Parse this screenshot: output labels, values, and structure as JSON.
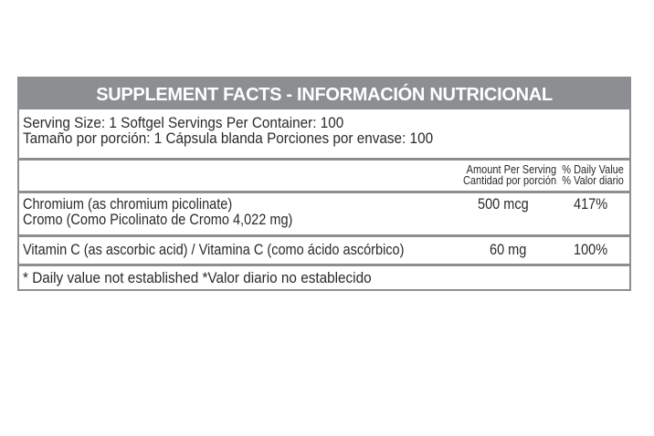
{
  "title": "SUPPLEMENT FACTS - INFORMACIÓN NUTRICIONAL",
  "serving": {
    "line_en": "Serving Size: 1 Softgel Servings Per Container: 100",
    "line_es": "Tamaño por porción: 1 Cápsula blanda Porciones por envase: 100"
  },
  "columns": {
    "amount_en": "Amount Per Serving",
    "dv_en": "% Daily Value",
    "amount_es": "Cantidad por porción",
    "dv_es": "% Valor diario"
  },
  "nutrients": [
    {
      "name_en": "Chromium (as chromium picolinate)",
      "name_es": "Cromo (Como Picolinato de Cromo 4,022 mg)",
      "amount": "500 mcg",
      "dv": "417%"
    },
    {
      "name": "Vitamin C (as ascorbic acid) / Vitamina C (como ácido ascórbico)",
      "amount": "60 mg",
      "dv": "100%"
    }
  ],
  "footnote": "* Daily value not established *Valor diario no establecido",
  "colors": {
    "header_bg": "#8c8e92",
    "header_text": "#ffffff"
  }
}
